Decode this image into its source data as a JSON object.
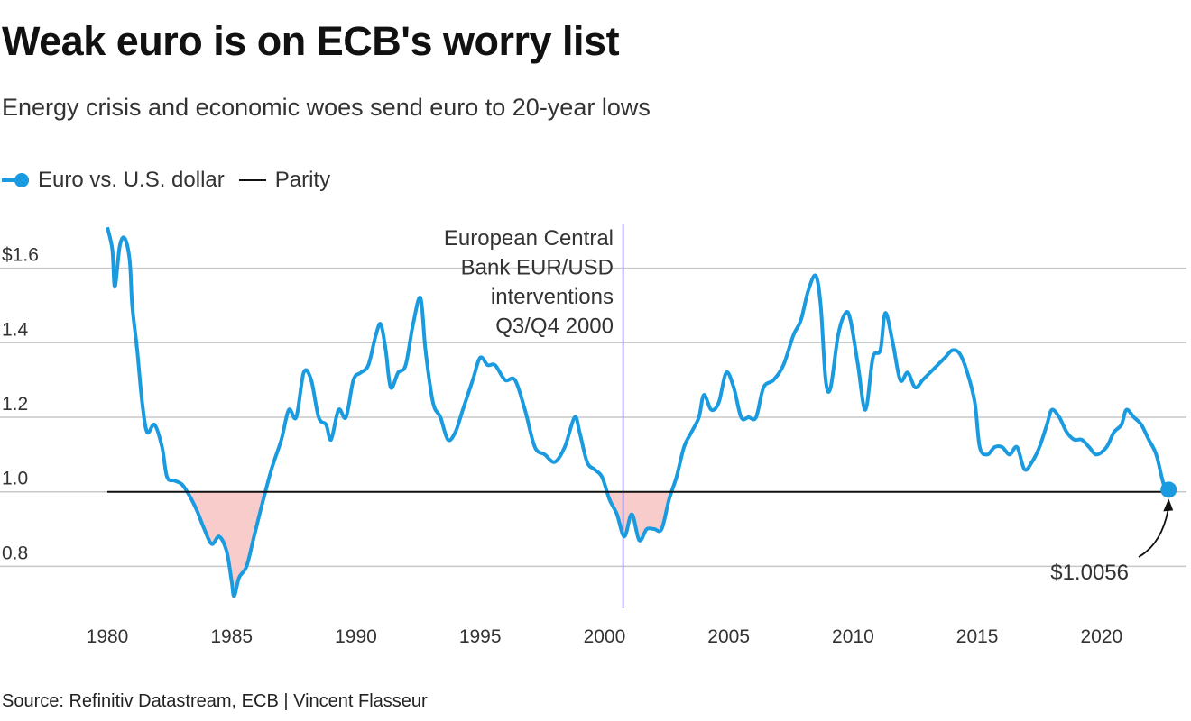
{
  "title": "Weak euro is on ECB's worry list",
  "subtitle": "Energy crisis and economic woes send euro to 20-year lows",
  "source": "Source: Refinitiv Datastream, ECB | Vincent Flasseur",
  "colors": {
    "euro": "#1a9be0",
    "parity": "#111111",
    "below_fill": "#f9cccc",
    "intervention": "#7a6fc0",
    "grid": "#c8c8c8"
  },
  "chart_data": {
    "type": "line",
    "title": "Weak euro is on ECB's worry list",
    "legend": {
      "position": "top-left",
      "entries": [
        "Euro vs. U.S. dollar",
        "Parity"
      ]
    },
    "xlim": [
      1980,
      2022.8
    ],
    "ylim": [
      0.68,
      1.72
    ],
    "y_ticks": [
      1.6,
      1.4,
      1.2,
      1.0,
      0.8
    ],
    "y_tick_labels": [
      "$1.6",
      "1.4",
      "1.2",
      "1.0",
      "0.8"
    ],
    "x_ticks": [
      1980,
      1985,
      1990,
      1995,
      2000,
      2005,
      2010,
      2015,
      2020
    ],
    "x_tick_labels": [
      "1980",
      "1985",
      "1990",
      "1995",
      "2000",
      "2005",
      "2010",
      "2015",
      "2020"
    ],
    "grid": true,
    "series": [
      {
        "name": "Euro vs. U.S. dollar",
        "x": [
          1980.0,
          1980.2,
          1980.3,
          1980.5,
          1980.7,
          1980.9,
          1981.0,
          1981.2,
          1981.4,
          1981.6,
          1981.9,
          1982.2,
          1982.4,
          1982.7,
          1983.0,
          1983.3,
          1983.6,
          1983.9,
          1984.2,
          1984.5,
          1984.8,
          1985.0,
          1985.1,
          1985.3,
          1985.6,
          1985.9,
          1986.2,
          1986.6,
          1987.0,
          1987.3,
          1987.6,
          1987.9,
          1988.2,
          1988.5,
          1988.8,
          1989.0,
          1989.3,
          1989.6,
          1989.9,
          1990.2,
          1990.5,
          1990.8,
          1991.0,
          1991.2,
          1991.4,
          1991.7,
          1992.0,
          1992.3,
          1992.6,
          1992.8,
          1993.1,
          1993.4,
          1993.7,
          1994.0,
          1994.3,
          1994.7,
          1995.0,
          1995.3,
          1995.6,
          1996.0,
          1996.4,
          1996.8,
          1997.2,
          1997.6,
          1998.0,
          1998.4,
          1998.8,
          1999.0,
          1999.3,
          1999.6,
          1999.9,
          2000.2,
          2000.5,
          2000.8,
          2001.1,
          2001.4,
          2001.7,
          2002.0,
          2002.3,
          2002.6,
          2002.9,
          2003.2,
          2003.5,
          2003.8,
          2004.0,
          2004.3,
          2004.6,
          2004.9,
          2005.2,
          2005.5,
          2005.8,
          2006.1,
          2006.4,
          2006.8,
          2007.2,
          2007.6,
          2007.9,
          2008.2,
          2008.5,
          2008.7,
          2008.9,
          2009.1,
          2009.4,
          2009.7,
          2009.9,
          2010.2,
          2010.5,
          2010.8,
          2011.1,
          2011.3,
          2011.6,
          2011.9,
          2012.2,
          2012.5,
          2012.8,
          2013.1,
          2013.4,
          2013.7,
          2014.0,
          2014.3,
          2014.6,
          2014.9,
          2015.1,
          2015.4,
          2015.7,
          2016.0,
          2016.3,
          2016.6,
          2016.9,
          2017.2,
          2017.5,
          2017.8,
          2018.0,
          2018.3,
          2018.6,
          2018.9,
          2019.2,
          2019.5,
          2019.8,
          2020.2,
          2020.5,
          2020.8,
          2021.0,
          2021.3,
          2021.6,
          2021.9,
          2022.2,
          2022.5,
          2022.7
        ],
        "values": [
          1.71,
          1.65,
          1.55,
          1.66,
          1.68,
          1.62,
          1.5,
          1.38,
          1.24,
          1.16,
          1.18,
          1.12,
          1.04,
          1.03,
          1.02,
          0.99,
          0.95,
          0.9,
          0.86,
          0.88,
          0.84,
          0.76,
          0.72,
          0.77,
          0.8,
          0.88,
          0.96,
          1.06,
          1.14,
          1.22,
          1.2,
          1.32,
          1.3,
          1.2,
          1.18,
          1.14,
          1.22,
          1.2,
          1.3,
          1.32,
          1.34,
          1.42,
          1.45,
          1.38,
          1.28,
          1.32,
          1.34,
          1.45,
          1.52,
          1.38,
          1.24,
          1.2,
          1.14,
          1.16,
          1.22,
          1.3,
          1.36,
          1.34,
          1.34,
          1.3,
          1.3,
          1.22,
          1.12,
          1.1,
          1.08,
          1.12,
          1.2,
          1.16,
          1.08,
          1.06,
          1.04,
          0.98,
          0.94,
          0.88,
          0.94,
          0.87,
          0.9,
          0.9,
          0.9,
          0.98,
          1.04,
          1.12,
          1.16,
          1.2,
          1.26,
          1.22,
          1.24,
          1.32,
          1.28,
          1.2,
          1.2,
          1.2,
          1.28,
          1.3,
          1.34,
          1.42,
          1.46,
          1.54,
          1.58,
          1.5,
          1.3,
          1.28,
          1.42,
          1.48,
          1.46,
          1.34,
          1.22,
          1.36,
          1.38,
          1.48,
          1.4,
          1.3,
          1.32,
          1.28,
          1.3,
          1.32,
          1.34,
          1.36,
          1.38,
          1.37,
          1.32,
          1.24,
          1.12,
          1.1,
          1.12,
          1.12,
          1.1,
          1.12,
          1.06,
          1.08,
          1.12,
          1.18,
          1.22,
          1.2,
          1.16,
          1.14,
          1.14,
          1.12,
          1.1,
          1.12,
          1.16,
          1.18,
          1.22,
          1.2,
          1.18,
          1.14,
          1.1,
          1.02,
          1.0056
        ]
      },
      {
        "name": "Parity",
        "value": 1.0
      }
    ],
    "intervention": {
      "x": 2000.75,
      "label_lines": [
        "European Central",
        "Bank EUR/USD",
        "interventions",
        "Q3/Q4 2000"
      ]
    },
    "last_value": {
      "x": 2022.7,
      "y": 1.0056,
      "label": "$1.0056"
    }
  }
}
